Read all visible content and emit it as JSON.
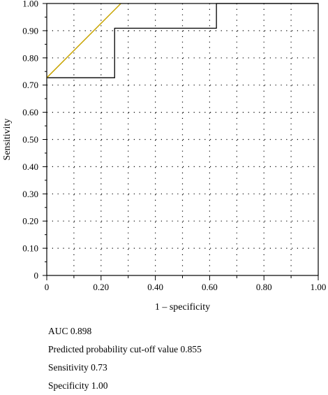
{
  "chart_data": {
    "type": "line",
    "xlabel": "1 – specificity",
    "ylabel": "Sensitivity",
    "xlim": [
      0,
      1
    ],
    "ylim": [
      0,
      1
    ],
    "x_ticks": [
      "0",
      "0.20",
      "0.40",
      "0.60",
      "0.80",
      "1.00"
    ],
    "y_ticks": [
      "0",
      "0.10",
      "0.20",
      "0.30",
      "0.40",
      "0.50",
      "0.60",
      "0.70",
      "0.80",
      "0.90",
      "1.00"
    ],
    "grid": "dotted",
    "series": [
      {
        "kind": "step",
        "color": "#000000",
        "x": [
          0,
          0.25,
          0.25,
          0.625,
          0.625,
          1.0
        ],
        "y": [
          0.727,
          0.727,
          0.909,
          0.909,
          1.0,
          1.0
        ]
      },
      {
        "kind": "line",
        "color": "#c8a400",
        "x": [
          0,
          0.273
        ],
        "y": [
          0.727,
          1.0
        ]
      }
    ]
  },
  "stats": {
    "auc": "AUC  0.898",
    "cutoff": "Predicted probability cut-off value 0.855",
    "sensitivity": "Sensitivity 0.73",
    "specificity": "Specificity 1.00"
  }
}
